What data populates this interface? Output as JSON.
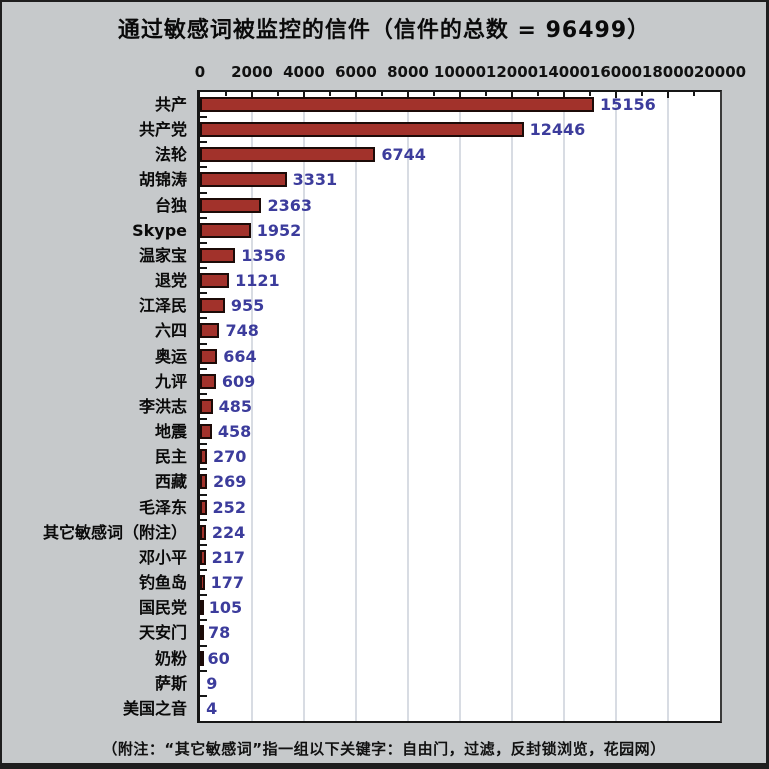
{
  "title": "通过敏感词被监控的信件（信件的总数 = 96499）",
  "footnote": "（附注：“其它敏感词”指一组以下关键字：自由门，过滤，反封锁浏览，花园网）",
  "chart_data": {
    "type": "bar",
    "orientation": "horizontal",
    "title": "通过敏感词被监控的信件（信件的总数 = 96499）",
    "total_letters": 96499,
    "categories": [
      "共产",
      "共产党",
      "法轮",
      "胡锦涛",
      "台独",
      "Skype",
      "温家宝",
      "退党",
      "江泽民",
      "六四",
      "奥运",
      "九评",
      "李洪志",
      "地震",
      "民主",
      "西藏",
      "毛泽东",
      "其它敏感词（附注）",
      "邓小平",
      "钓鱼岛",
      "国民党",
      "天安门",
      "奶粉",
      "萨斯",
      "美国之音"
    ],
    "values": [
      15156,
      12446,
      6744,
      3331,
      2363,
      1952,
      1356,
      1121,
      955,
      748,
      664,
      609,
      485,
      458,
      270,
      269,
      252,
      224,
      217,
      177,
      105,
      78,
      60,
      9,
      4
    ],
    "xlim": [
      0,
      20000
    ],
    "x_tick_labels": [
      "0",
      "2000",
      "4000",
      "6000",
      "8000",
      "10000",
      "12000",
      "14000",
      "16000",
      "18000",
      "20000"
    ],
    "x_major_step": 2000,
    "x_minor_step": 1000,
    "grid": true,
    "legend": "none",
    "colors": {
      "bar_fill": "#a2322b",
      "bar_border": "#1c0b08",
      "value_label": "#3c3c9c",
      "grid_line": "#d8dce3",
      "plot_background": "#ffffff",
      "page_background": "#c6c9cb",
      "text": "#0a0a0a"
    }
  }
}
